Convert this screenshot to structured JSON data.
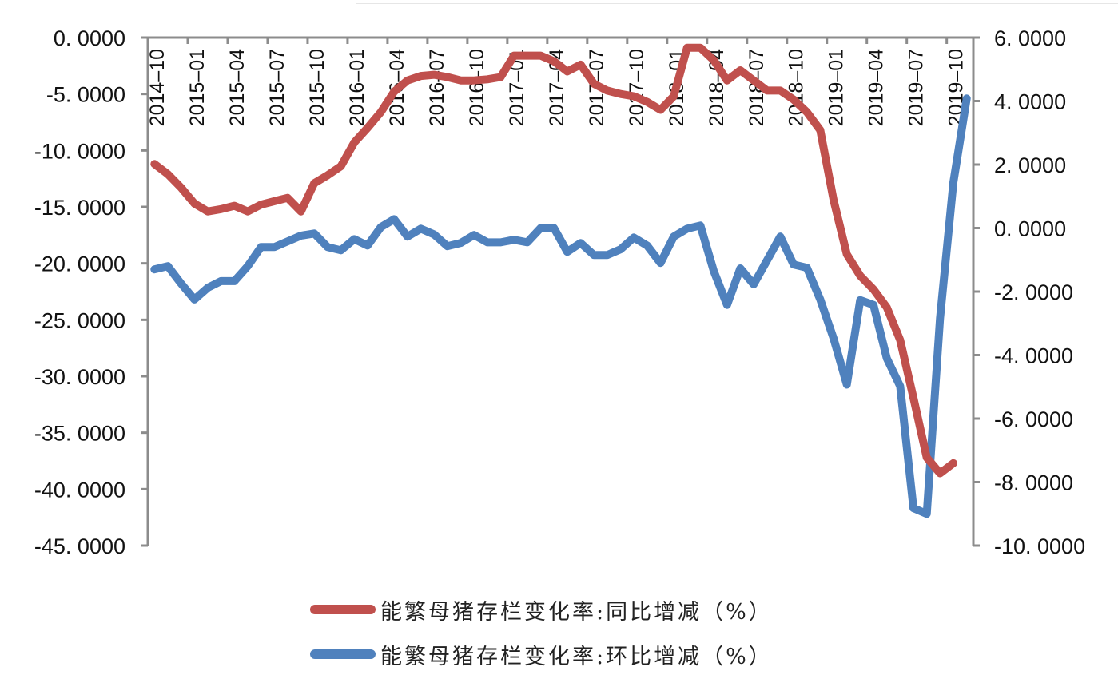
{
  "chart_data": {
    "type": "line",
    "title": "",
    "xlabel": "",
    "ylabel_left": "",
    "ylabel_right": "",
    "grid": false,
    "legend_position": "bottom",
    "x_tick_labels": [
      "2014-10",
      "2015-01",
      "2015-04",
      "2015-07",
      "2015-10",
      "2016-01",
      "2016-04",
      "2016-07",
      "2016-10",
      "2017-01",
      "2017-04",
      "2017-07",
      "2017-10",
      "2018-01",
      "2018-04",
      "2018-07",
      "2018-10",
      "2019-01",
      "2019-04",
      "2019-07",
      "2019-10"
    ],
    "x": [
      "2014-10",
      "2014-11",
      "2014-12",
      "2015-01",
      "2015-02",
      "2015-03",
      "2015-04",
      "2015-05",
      "2015-06",
      "2015-07",
      "2015-08",
      "2015-09",
      "2015-10",
      "2015-11",
      "2015-12",
      "2016-01",
      "2016-02",
      "2016-03",
      "2016-04",
      "2016-05",
      "2016-06",
      "2016-07",
      "2016-08",
      "2016-09",
      "2016-10",
      "2016-11",
      "2016-12",
      "2017-01",
      "2017-02",
      "2017-03",
      "2017-04",
      "2017-05",
      "2017-06",
      "2017-07",
      "2017-08",
      "2017-09",
      "2017-10",
      "2017-11",
      "2017-12",
      "2018-01",
      "2018-02",
      "2018-03",
      "2018-04",
      "2018-05",
      "2018-06",
      "2018-07",
      "2018-08",
      "2018-09",
      "2018-10",
      "2018-11",
      "2018-12",
      "2019-01",
      "2019-02",
      "2019-03",
      "2019-04",
      "2019-05",
      "2019-06",
      "2019-07",
      "2019-08",
      "2019-09",
      "2019-10",
      "2019-11"
    ],
    "left_axis": {
      "ylim": [
        -45,
        0
      ],
      "ticks": [
        "0.0000",
        "-5.0000",
        "-10.0000",
        "-15.0000",
        "-20.0000",
        "-25.0000",
        "-30.0000",
        "-35.0000",
        "-40.0000",
        "-45.0000"
      ]
    },
    "right_axis": {
      "ylim": [
        -10,
        6
      ],
      "ticks": [
        "6.0000",
        "4.0000",
        "2.0000",
        "0.0000",
        "-2.0000",
        "-4.0000",
        "-6.0000",
        "-8.0000",
        "-10.0000"
      ]
    },
    "series": [
      {
        "name": "能繁母猪存栏变化率:同比增减（%）",
        "axis": "left",
        "color": "#C0504D",
        "values": [
          -11.2,
          -12.1,
          -13.3,
          -14.7,
          -15.4,
          -15.2,
          -14.9,
          -15.4,
          -14.8,
          -14.5,
          -14.2,
          -15.4,
          -12.9,
          -12.2,
          -11.4,
          -9.3,
          -8.0,
          -6.6,
          -4.8,
          -3.8,
          -3.4,
          -3.3,
          -3.5,
          -3.8,
          -3.8,
          -3.7,
          -3.5,
          -1.6,
          -1.6,
          -1.6,
          -2.1,
          -3.0,
          -2.4,
          -4.1,
          -4.7,
          -5.0,
          -5.2,
          -5.7,
          -6.4,
          -5.2,
          -0.9,
          -0.9,
          -2.0,
          -3.8,
          -2.9,
          -3.8,
          -4.7,
          -4.7,
          -5.5,
          -6.6,
          -8.2,
          -14.4,
          -19.2,
          -21.1,
          -22.3,
          -23.9,
          -26.8,
          -31.9,
          -37.2,
          -38.6,
          -37.7
        ]
      },
      {
        "name": "能繁母猪存栏变化率:环比增减（%）",
        "axis": "right",
        "color": "#4F81BD",
        "values": [
          -1.3,
          -1.2,
          -1.75,
          -2.25,
          -1.88,
          -1.67,
          -1.67,
          -1.2,
          -0.6,
          -0.6,
          -0.42,
          -0.24,
          -0.17,
          -0.6,
          -0.7,
          -0.35,
          -0.55,
          0.03,
          0.28,
          -0.27,
          -0.02,
          -0.2,
          -0.57,
          -0.47,
          -0.22,
          -0.45,
          -0.45,
          -0.37,
          -0.45,
          -0.0,
          -0.0,
          -0.75,
          -0.47,
          -0.85,
          -0.85,
          -0.67,
          -0.3,
          -0.55,
          -1.1,
          -0.27,
          -0.02,
          0.08,
          -1.35,
          -2.42,
          -1.27,
          -1.77,
          -1.02,
          -0.27,
          -1.15,
          -1.25,
          -2.25,
          -3.48,
          -4.93,
          -2.27,
          -2.42,
          -4.1,
          -4.98,
          -8.82,
          -9.0,
          -2.84,
          1.44,
          4.08
        ]
      }
    ]
  },
  "legend": {
    "items": [
      {
        "label": "能繁母猪存栏变化率:同比增减（%）",
        "color": "#C0504D"
      },
      {
        "label": "能繁母猪存栏变化率:环比增减（%）",
        "color": "#4F81BD"
      }
    ]
  }
}
